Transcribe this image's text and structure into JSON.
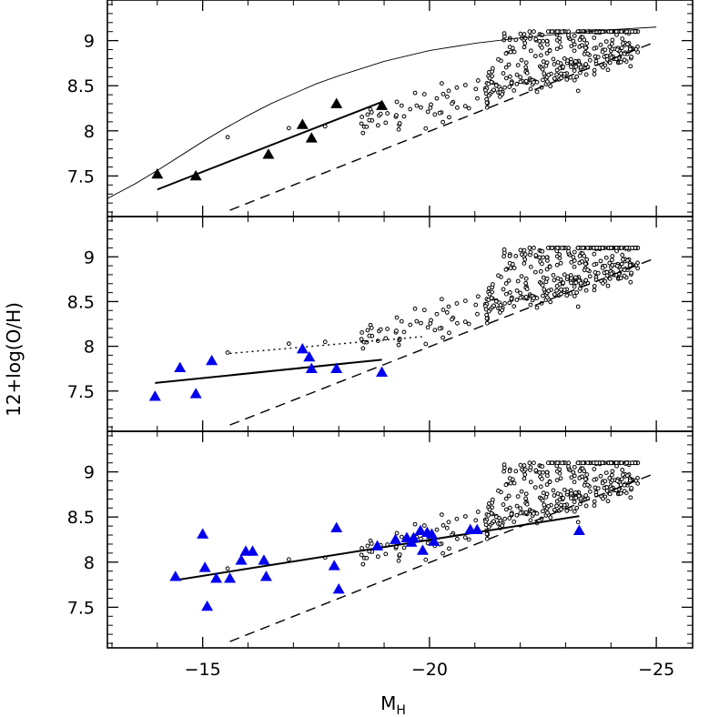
{
  "chart_data": {
    "type": "scatter",
    "xlabel_main": "M",
    "xlabel_sub": "H",
    "ylabel": "12+log(O/H)",
    "xlim": [
      -12.9,
      -25.8
    ],
    "ylim": [
      7.05,
      9.45
    ],
    "x_ticks": [
      -15,
      -20,
      -25
    ],
    "x_tick_labels": [
      "−15",
      "−20",
      "−25"
    ],
    "y_ticks": [
      7.5,
      8,
      8.5,
      9
    ],
    "y_tick_labels": [
      "7.5",
      "8",
      "8.5",
      "9"
    ],
    "grid": false,
    "colors": {
      "frame": "#000000",
      "triangle_black": "#000000",
      "triangle_blue": "#0000ee",
      "points": "#000000"
    },
    "shared_dashed_line": {
      "x": [
        -15.6,
        -24.9
      ],
      "y": [
        7.12,
        8.97
      ]
    },
    "background_points_seed": 12345,
    "background_points_count": 430,
    "panels": [
      {
        "triangles_color": "black",
        "triangles": [
          {
            "x": -14.0,
            "y": 7.52
          },
          {
            "x": -14.85,
            "y": 7.5
          },
          {
            "x": -16.45,
            "y": 7.74
          },
          {
            "x": -17.2,
            "y": 8.07
          },
          {
            "x": -17.4,
            "y": 7.92
          },
          {
            "x": -17.95,
            "y": 8.3
          },
          {
            "x": -18.95,
            "y": 8.28
          }
        ],
        "solid_fit": {
          "x": [
            -14.0,
            -18.95
          ],
          "y": [
            7.35,
            8.32
          ]
        },
        "curve": {
          "x": [
            -12.9,
            -13.5,
            -14.0,
            -14.5,
            -15.0,
            -15.5,
            -16.0,
            -16.5,
            -17.0,
            -17.5,
            -18.0,
            -19.0,
            -20.0,
            -21.0,
            -22.0,
            -23.0,
            -24.0,
            -25.0
          ],
          "y": [
            7.25,
            7.41,
            7.56,
            7.72,
            7.88,
            8.03,
            8.17,
            8.3,
            8.41,
            8.52,
            8.61,
            8.77,
            8.89,
            8.97,
            9.03,
            9.08,
            9.12,
            9.15
          ]
        }
      },
      {
        "triangles_color": "blue",
        "triangles": [
          {
            "x": -13.95,
            "y": 7.44
          },
          {
            "x": -14.5,
            "y": 7.76
          },
          {
            "x": -14.85,
            "y": 7.47
          },
          {
            "x": -15.2,
            "y": 7.84
          },
          {
            "x": -17.2,
            "y": 7.97
          },
          {
            "x": -17.35,
            "y": 7.88
          },
          {
            "x": -17.4,
            "y": 7.75
          },
          {
            "x": -17.95,
            "y": 7.75
          },
          {
            "x": -18.95,
            "y": 7.71
          }
        ],
        "solid_fit": {
          "x": [
            -13.95,
            -18.95
          ],
          "y": [
            7.59,
            7.85
          ]
        },
        "dotted_fit": {
          "x": [
            -15.6,
            -19.9
          ],
          "y": [
            7.92,
            8.11
          ]
        }
      },
      {
        "triangles_color": "blue",
        "triangles": [
          {
            "x": -14.4,
            "y": 7.84
          },
          {
            "x": -15.0,
            "y": 8.31
          },
          {
            "x": -15.05,
            "y": 7.94
          },
          {
            "x": -15.3,
            "y": 7.82
          },
          {
            "x": -15.6,
            "y": 7.82
          },
          {
            "x": -15.85,
            "y": 8.02
          },
          {
            "x": -15.95,
            "y": 8.12
          },
          {
            "x": -16.1,
            "y": 8.12
          },
          {
            "x": -16.4,
            "y": 7.84
          },
          {
            "x": -16.35,
            "y": 8.02
          },
          {
            "x": -15.1,
            "y": 7.51
          },
          {
            "x": -17.95,
            "y": 8.38
          },
          {
            "x": -17.9,
            "y": 7.96
          },
          {
            "x": -18.0,
            "y": 7.7
          },
          {
            "x": -18.85,
            "y": 8.18
          },
          {
            "x": -19.25,
            "y": 8.25
          },
          {
            "x": -19.5,
            "y": 8.27
          },
          {
            "x": -19.6,
            "y": 8.22
          },
          {
            "x": -19.65,
            "y": 8.27
          },
          {
            "x": -19.8,
            "y": 8.35
          },
          {
            "x": -19.85,
            "y": 8.13
          },
          {
            "x": -19.95,
            "y": 8.33
          },
          {
            "x": -20.05,
            "y": 8.31
          },
          {
            "x": -20.1,
            "y": 8.23
          },
          {
            "x": -20.9,
            "y": 8.36
          },
          {
            "x": -21.05,
            "y": 8.36
          },
          {
            "x": -23.3,
            "y": 8.35
          }
        ],
        "solid_fit": {
          "x": [
            -14.4,
            -23.3
          ],
          "y": [
            7.8,
            8.51
          ]
        }
      }
    ]
  }
}
